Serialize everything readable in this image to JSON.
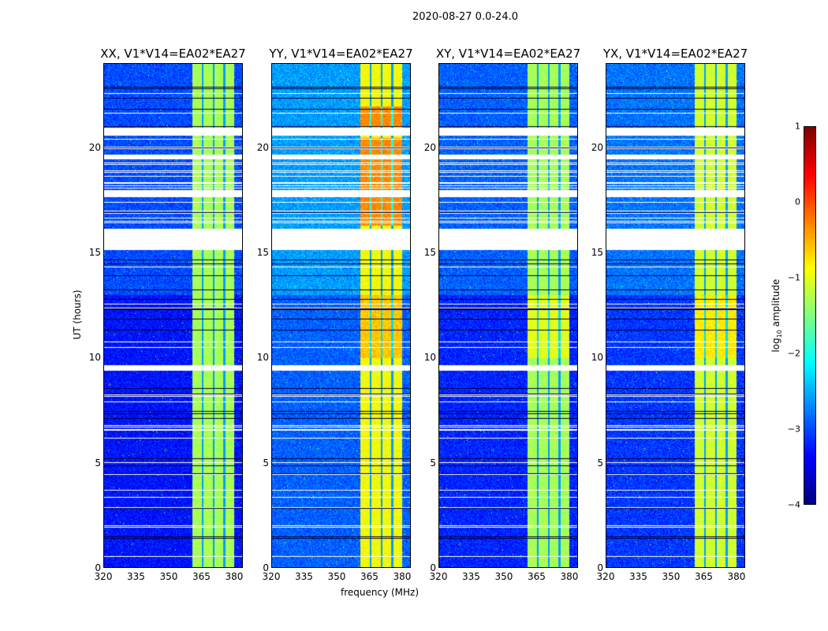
{
  "chart_data": {
    "type": "heatmap",
    "suptitle": "2020-08-27 0.0-24.0",
    "xlabel": "frequency (MHz)",
    "ylabel": "UT (hours)",
    "xlim": [
      320,
      384
    ],
    "ylim": [
      0,
      24
    ],
    "xticks": [
      "320",
      "335",
      "350",
      "365",
      "380"
    ],
    "xtick_values": [
      320,
      335,
      350,
      365,
      380
    ],
    "yticks": [
      "0",
      "5",
      "10",
      "15",
      "20"
    ],
    "ytick_values": [
      0,
      5,
      10,
      15,
      20
    ],
    "panels": [
      {
        "title": "XX, V1*V14=EA02*EA27",
        "background_log_amp": -3.3,
        "band_log_amp": -1.3
      },
      {
        "title": "YY, V1*V14=EA02*EA27",
        "background_log_amp": -2.9,
        "band_log_amp": -0.9
      },
      {
        "title": "XY, V1*V14=EA02*EA27",
        "background_log_amp": -3.2,
        "band_log_amp": -1.3
      },
      {
        "title": "YX, V1*V14=EA02*EA27",
        "background_log_amp": -3.1,
        "band_log_amp": -1.1
      }
    ],
    "bright_band_mhz": [
      360.4,
      379.6
    ],
    "band_gaps_mhz": [
      365,
      370,
      375
    ],
    "flagged_ut_ranges": [
      [
        15.2,
        16.2
      ],
      [
        9.45,
        9.7
      ],
      [
        17.7,
        18.0
      ],
      [
        19.5,
        19.7
      ],
      [
        20.7,
        20.9
      ]
    ],
    "colorbar": {
      "label": "log10 amplitude",
      "label_main": "log",
      "label_sub": "10",
      "label_rest": " amplitude",
      "colormap": "jet",
      "range": [
        -4,
        1
      ],
      "ticks": [
        "1",
        "0",
        "−1",
        "−2",
        "−3",
        "−4"
      ],
      "tick_values": [
        1,
        0,
        -1,
        -2,
        -3,
        -4
      ]
    }
  }
}
